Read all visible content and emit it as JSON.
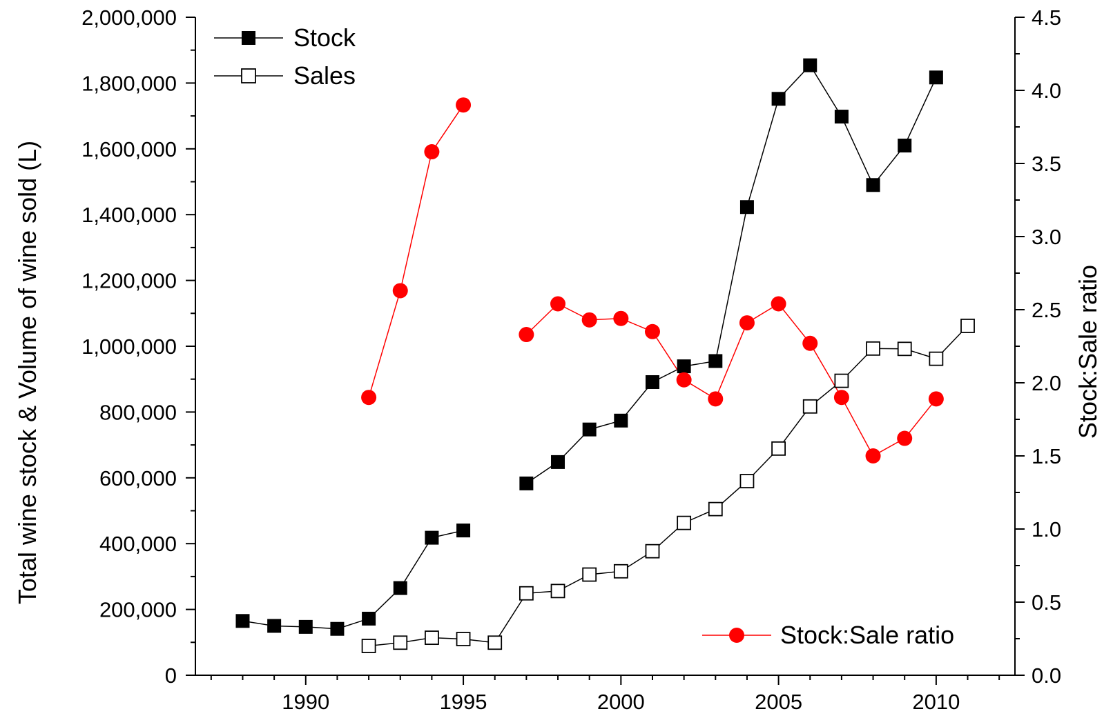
{
  "chart_data": {
    "type": "line",
    "title": "",
    "xlabel": "",
    "ylabel": "Total wine stock & Volume of wine sold (L)",
    "y2label": "Stock:Sale ratio",
    "xlim": [
      1986.5,
      2012.5
    ],
    "ylim": [
      0,
      2000000
    ],
    "y2lim": [
      0,
      4.5
    ],
    "x_ticks": [
      1990,
      1995,
      2000,
      2005,
      2010
    ],
    "x_tick_labels": [
      "1990",
      "1995",
      "2000",
      "2005",
      "2010"
    ],
    "y_ticks": [
      0,
      200000,
      400000,
      600000,
      800000,
      1000000,
      1200000,
      1400000,
      1600000,
      1800000,
      2000000
    ],
    "y_tick_labels": [
      "0",
      "200,000",
      "400,000",
      "600,000",
      "800,000",
      "1,000,000",
      "1,200,000",
      "1,400,000",
      "1,600,000",
      "1,800,000",
      "2,000,000"
    ],
    "y2_ticks": [
      0,
      0.5,
      1,
      1.5,
      2,
      2.5,
      3,
      3.5,
      4,
      4.5
    ],
    "y2_tick_labels": [
      "0.0",
      "0.5",
      "1.0",
      "1.5",
      "2.0",
      "2.5",
      "3.0",
      "3.5",
      "4.0",
      "4.5"
    ],
    "grid": false,
    "series": [
      {
        "name": "Stock",
        "axis": "left",
        "marker": "filled-square",
        "color": "#000000",
        "segments": [
          [
            [
              1988,
              165000
            ],
            [
              1989,
              150000
            ],
            [
              1990,
              147000
            ],
            [
              1991,
              141000
            ],
            [
              1992,
              172000
            ],
            [
              1993,
              265000
            ],
            [
              1994,
              418000
            ],
            [
              1995,
              440000
            ]
          ],
          [
            [
              1997,
              583000
            ],
            [
              1998,
              648000
            ],
            [
              1999,
              747000
            ],
            [
              2000,
              774000
            ],
            [
              2001,
              891000
            ],
            [
              2002,
              939000
            ],
            [
              2003,
              955000
            ],
            [
              2004,
              1423000
            ],
            [
              2005,
              1752000
            ],
            [
              2006,
              1854000
            ],
            [
              2007,
              1698000
            ],
            [
              2008,
              1490000
            ],
            [
              2009,
              1610000
            ],
            [
              2010,
              1817000
            ]
          ]
        ]
      },
      {
        "name": "Sales",
        "axis": "left",
        "marker": "open-square",
        "color": "#000000",
        "segments": [
          [
            [
              1992,
              89000
            ],
            [
              1993,
              99000
            ],
            [
              1994,
              114000
            ],
            [
              1995,
              110000
            ],
            [
              1996,
              99000
            ],
            [
              1997,
              249000
            ],
            [
              1998,
              256000
            ],
            [
              1999,
              306000
            ],
            [
              2000,
              316000
            ],
            [
              2001,
              377000
            ],
            [
              2002,
              463000
            ],
            [
              2003,
              505000
            ],
            [
              2004,
              590000
            ],
            [
              2005,
              689000
            ],
            [
              2006,
              817000
            ],
            [
              2007,
              895000
            ],
            [
              2008,
              993000
            ],
            [
              2009,
              992000
            ],
            [
              2010,
              962000
            ],
            [
              2011,
              1062000
            ]
          ]
        ]
      },
      {
        "name": "Stock:Sale ratio",
        "axis": "right",
        "marker": "filled-circle",
        "color": "#ff0000",
        "segments": [
          [
            [
              1992,
              1.9
            ],
            [
              1993,
              2.63
            ],
            [
              1994,
              3.58
            ],
            [
              1995,
              3.9
            ]
          ],
          [
            [
              1997,
              2.33
            ],
            [
              1998,
              2.54
            ],
            [
              1999,
              2.43
            ],
            [
              2000,
              2.44
            ],
            [
              2001,
              2.35
            ],
            [
              2002,
              2.02
            ],
            [
              2003,
              1.89
            ],
            [
              2004,
              2.41
            ],
            [
              2005,
              2.54
            ],
            [
              2006,
              2.27
            ],
            [
              2007,
              1.9
            ],
            [
              2008,
              1.5
            ],
            [
              2009,
              1.62
            ],
            [
              2010,
              1.89
            ]
          ]
        ]
      }
    ],
    "legend": [
      {
        "label": "Stock",
        "placement": "top-left"
      },
      {
        "label": "Sales",
        "placement": "top-left"
      },
      {
        "label": "Stock:Sale ratio",
        "placement": "bottom-right"
      }
    ]
  }
}
